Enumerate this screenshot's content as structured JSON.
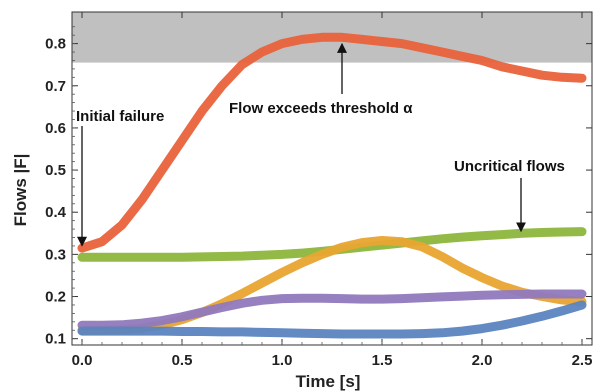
{
  "chart_data": {
    "type": "line",
    "title": "",
    "xlabel": "Time [s]",
    "ylabel": "Flows |F|",
    "xlim": [
      -0.05,
      2.55
    ],
    "ylim": [
      0.085,
      0.875
    ],
    "x_ticks": [
      "0.0",
      "0.5",
      "1.0",
      "1.5",
      "2.0",
      "2.5"
    ],
    "y_ticks": [
      "0.1",
      "0.2",
      "0.3",
      "0.4",
      "0.5",
      "0.6",
      "0.7",
      "0.8"
    ],
    "threshold_band": {
      "from": 0.755,
      "to": 0.875,
      "color": "#c0c0c0"
    },
    "grid": false,
    "x": [
      0.0,
      0.1,
      0.2,
      0.3,
      0.4,
      0.5,
      0.6,
      0.7,
      0.8,
      0.9,
      1.0,
      1.1,
      1.2,
      1.3,
      1.4,
      1.5,
      1.6,
      1.7,
      1.8,
      1.9,
      2.0,
      2.1,
      2.2,
      2.3,
      2.4,
      2.5
    ],
    "series": [
      {
        "color": "#e8623a",
        "values": [
          0.315,
          0.33,
          0.37,
          0.43,
          0.5,
          0.57,
          0.64,
          0.7,
          0.75,
          0.78,
          0.8,
          0.81,
          0.815,
          0.815,
          0.81,
          0.805,
          0.8,
          0.79,
          0.78,
          0.77,
          0.76,
          0.745,
          0.735,
          0.725,
          0.72,
          0.718
        ]
      },
      {
        "color": "#8db63c",
        "values": [
          0.293,
          0.293,
          0.293,
          0.293,
          0.293,
          0.293,
          0.294,
          0.295,
          0.296,
          0.298,
          0.3,
          0.303,
          0.307,
          0.312,
          0.317,
          0.322,
          0.327,
          0.332,
          0.337,
          0.341,
          0.344,
          0.347,
          0.35,
          0.352,
          0.353,
          0.354
        ]
      },
      {
        "color": "#e8a530",
        "values": [
          0.12,
          0.12,
          0.121,
          0.125,
          0.133,
          0.145,
          0.162,
          0.183,
          0.207,
          0.232,
          0.257,
          0.28,
          0.3,
          0.317,
          0.328,
          0.333,
          0.33,
          0.318,
          0.295,
          0.268,
          0.245,
          0.225,
          0.21,
          0.2,
          0.192,
          0.188
        ]
      },
      {
        "color": "#9079bd",
        "values": [
          0.132,
          0.132,
          0.133,
          0.137,
          0.143,
          0.152,
          0.163,
          0.174,
          0.184,
          0.191,
          0.195,
          0.196,
          0.196,
          0.195,
          0.194,
          0.194,
          0.195,
          0.197,
          0.199,
          0.201,
          0.203,
          0.204,
          0.205,
          0.206,
          0.206,
          0.206
        ]
      },
      {
        "color": "#5b84bf",
        "values": [
          0.118,
          0.118,
          0.118,
          0.118,
          0.118,
          0.117,
          0.117,
          0.116,
          0.116,
          0.115,
          0.114,
          0.113,
          0.112,
          0.111,
          0.111,
          0.111,
          0.111,
          0.112,
          0.114,
          0.118,
          0.124,
          0.132,
          0.142,
          0.153,
          0.166,
          0.18
        ]
      }
    ],
    "annotations": {
      "initial_failure": "Initial failure",
      "threshold": "Flow exceeds threshold α",
      "uncritical": "Uncritical flows"
    }
  }
}
